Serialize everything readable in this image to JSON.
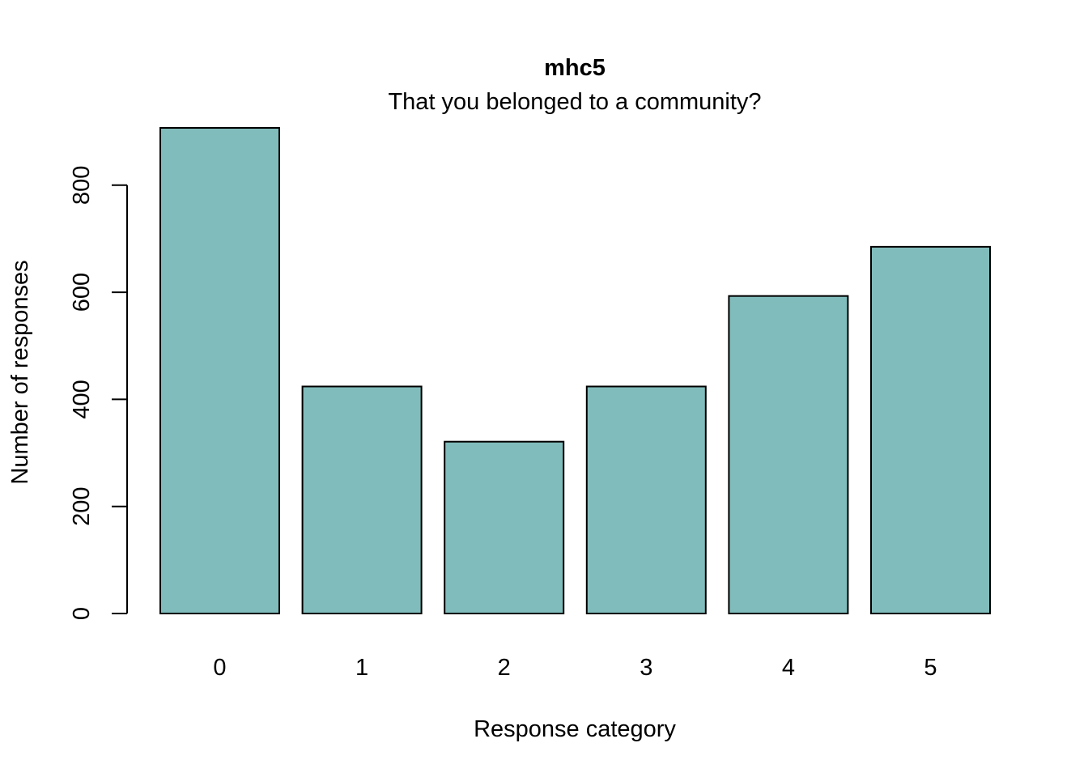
{
  "chart_data": {
    "type": "bar",
    "title": "mhc5",
    "subtitle": "That you belonged to a community?",
    "xlabel": "Response category",
    "ylabel": "Number of responses",
    "categories": [
      "0",
      "1",
      "2",
      "3",
      "4",
      "5"
    ],
    "values": [
      907,
      424,
      321,
      424,
      593,
      685
    ],
    "ylim": [
      0,
      907
    ],
    "yticks": [
      0,
      200,
      400,
      600,
      800
    ],
    "ytick_labels": [
      "0",
      "200",
      "400",
      "600",
      "800"
    ],
    "bar_color": "#80BCBB",
    "grid": false
  }
}
